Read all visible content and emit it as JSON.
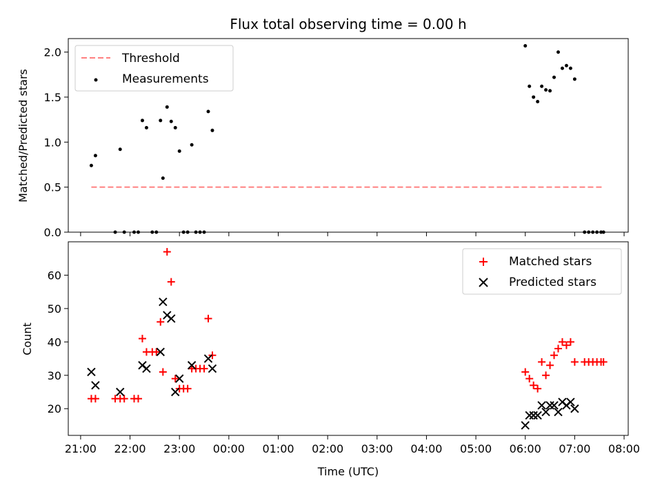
{
  "chart_data": [
    {
      "type": "scatter",
      "panel": "top",
      "title": "Flux total observing time = 0.00 h",
      "ylabel": "Matched/Predicted stars",
      "xlabel": "",
      "ylim": [
        0,
        2.15
      ],
      "xlim": [
        "20:45",
        "08:05"
      ],
      "yticks": [
        0.0,
        0.5,
        1.0,
        1.5,
        2.0
      ],
      "ytick_labels": [
        "0.0",
        "0.5",
        "1.0",
        "1.5",
        "2.0"
      ],
      "legend": {
        "position": "upper-left",
        "entries": [
          "Threshold",
          "Measurements"
        ]
      },
      "threshold": {
        "name": "Threshold",
        "value": 0.5,
        "x_start": "21:13",
        "x_end": "07:35",
        "color": "#ff7f7f"
      },
      "measurements": {
        "name": "Measurements",
        "color": "#000000",
        "points": [
          [
            "21:13",
            0.74
          ],
          [
            "21:18",
            0.85
          ],
          [
            "21:42",
            0.0
          ],
          [
            "21:48",
            0.92
          ],
          [
            "21:53",
            0.0
          ],
          [
            "22:05",
            0.0
          ],
          [
            "22:10",
            0.0
          ],
          [
            "22:15",
            1.24
          ],
          [
            "22:20",
            1.16
          ],
          [
            "22:27",
            0.0
          ],
          [
            "22:32",
            0.0
          ],
          [
            "22:37",
            1.24
          ],
          [
            "22:40",
            0.6
          ],
          [
            "22:45",
            1.39
          ],
          [
            "22:50",
            1.23
          ],
          [
            "22:55",
            1.16
          ],
          [
            "23:00",
            0.9
          ],
          [
            "23:05",
            0.0
          ],
          [
            "23:10",
            0.0
          ],
          [
            "23:15",
            0.97
          ],
          [
            "23:20",
            0.0
          ],
          [
            "23:25",
            0.0
          ],
          [
            "23:30",
            0.0
          ],
          [
            "23:35",
            1.34
          ],
          [
            "23:40",
            1.13
          ],
          [
            "06:00",
            2.07
          ],
          [
            "06:05",
            1.62
          ],
          [
            "06:10",
            1.5
          ],
          [
            "06:15",
            1.45
          ],
          [
            "06:20",
            1.62
          ],
          [
            "06:25",
            1.58
          ],
          [
            "06:30",
            1.57
          ],
          [
            "06:35",
            1.72
          ],
          [
            "06:40",
            2.0
          ],
          [
            "06:45",
            1.82
          ],
          [
            "06:50",
            1.85
          ],
          [
            "06:55",
            1.82
          ],
          [
            "07:00",
            1.7
          ],
          [
            "07:12",
            0.0
          ],
          [
            "07:17",
            0.0
          ],
          [
            "07:22",
            0.0
          ],
          [
            "07:27",
            0.0
          ],
          [
            "07:32",
            0.0
          ],
          [
            "07:35",
            0.0
          ]
        ]
      }
    },
    {
      "type": "scatter",
      "panel": "bottom",
      "xlabel": "Time (UTC)",
      "ylabel": "Count",
      "ylim": [
        12,
        70
      ],
      "xlim": [
        "20:45",
        "08:05"
      ],
      "yticks": [
        20,
        30,
        40,
        50,
        60
      ],
      "ytick_labels": [
        "20",
        "30",
        "40",
        "50",
        "60"
      ],
      "xticks": [
        "21:00",
        "22:00",
        "23:00",
        "00:00",
        "01:00",
        "02:00",
        "03:00",
        "04:00",
        "05:00",
        "06:00",
        "07:00",
        "08:00"
      ],
      "xtick_labels": [
        "21:00",
        "22:00",
        "23:00",
        "00:00",
        "01:00",
        "02:00",
        "03:00",
        "04:00",
        "05:00",
        "06:00",
        "07:00",
        "08:00"
      ],
      "legend": {
        "position": "upper-right",
        "entries": [
          "Matched stars",
          "Predicted stars"
        ]
      },
      "series": [
        {
          "name": "Matched stars",
          "marker": "plus",
          "color": "#ff0000",
          "points": [
            [
              "21:13",
              23
            ],
            [
              "21:18",
              23
            ],
            [
              "21:42",
              23
            ],
            [
              "21:48",
              23
            ],
            [
              "21:53",
              23
            ],
            [
              "22:05",
              23
            ],
            [
              "22:10",
              23
            ],
            [
              "22:15",
              41
            ],
            [
              "22:20",
              37
            ],
            [
              "22:27",
              37
            ],
            [
              "22:32",
              37
            ],
            [
              "22:37",
              46
            ],
            [
              "22:40",
              31
            ],
            [
              "22:45",
              67
            ],
            [
              "22:50",
              58
            ],
            [
              "22:55",
              29
            ],
            [
              "23:00",
              26
            ],
            [
              "23:05",
              26
            ],
            [
              "23:10",
              26
            ],
            [
              "23:15",
              32
            ],
            [
              "23:20",
              32
            ],
            [
              "23:25",
              32
            ],
            [
              "23:30",
              32
            ],
            [
              "23:35",
              47
            ],
            [
              "23:40",
              36
            ],
            [
              "06:00",
              31
            ],
            [
              "06:05",
              29
            ],
            [
              "06:10",
              27
            ],
            [
              "06:15",
              26
            ],
            [
              "06:20",
              34
            ],
            [
              "06:25",
              30
            ],
            [
              "06:30",
              33
            ],
            [
              "06:35",
              36
            ],
            [
              "06:40",
              38
            ],
            [
              "06:45",
              40
            ],
            [
              "06:50",
              39
            ],
            [
              "06:55",
              40
            ],
            [
              "07:00",
              34
            ],
            [
              "07:12",
              34
            ],
            [
              "07:17",
              34
            ],
            [
              "07:22",
              34
            ],
            [
              "07:27",
              34
            ],
            [
              "07:32",
              34
            ],
            [
              "07:35",
              34
            ]
          ]
        },
        {
          "name": "Predicted stars",
          "marker": "x",
          "color": "#000000",
          "points": [
            [
              "21:13",
              31
            ],
            [
              "21:18",
              27
            ],
            [
              "21:48",
              25
            ],
            [
              "22:15",
              33
            ],
            [
              "22:20",
              32
            ],
            [
              "22:37",
              37
            ],
            [
              "22:40",
              52
            ],
            [
              "22:45",
              48
            ],
            [
              "22:50",
              47
            ],
            [
              "22:55",
              25
            ],
            [
              "23:00",
              29
            ],
            [
              "23:15",
              33
            ],
            [
              "23:35",
              35
            ],
            [
              "23:40",
              32
            ],
            [
              "06:00",
              15
            ],
            [
              "06:05",
              18
            ],
            [
              "06:10",
              18
            ],
            [
              "06:15",
              18
            ],
            [
              "06:20",
              21
            ],
            [
              "06:25",
              19
            ],
            [
              "06:30",
              21
            ],
            [
              "06:35",
              21
            ],
            [
              "06:40",
              19
            ],
            [
              "06:45",
              22
            ],
            [
              "06:50",
              21
            ],
            [
              "06:55",
              22
            ],
            [
              "07:00",
              20
            ]
          ]
        }
      ]
    }
  ]
}
